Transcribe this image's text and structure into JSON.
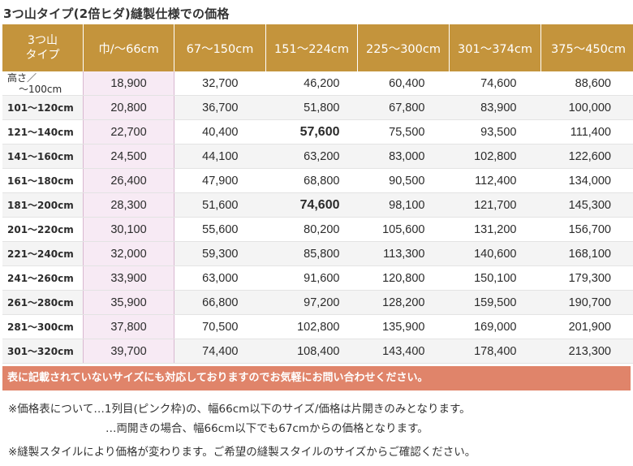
{
  "title": "3つ山タイプ(2倍ヒダ)縫製仕様での価格",
  "header": {
    "corner_line1": "3つ山",
    "corner_line2": "タイプ",
    "columns": [
      "巾/〜66cm",
      "67〜150cm",
      "151〜224cm",
      "225〜300cm",
      "301〜374cm",
      "375〜450cm"
    ]
  },
  "rows": [
    {
      "label_line1": "高さ／",
      "label_line2": "〜100cm",
      "values": [
        "18,900",
        "32,700",
        "46,200",
        "60,400",
        "74,600",
        "88,600"
      ]
    },
    {
      "label": "101〜120cm",
      "values": [
        "20,800",
        "36,700",
        "51,800",
        "67,800",
        "83,900",
        "100,000"
      ]
    },
    {
      "label": "121〜140cm",
      "values": [
        "22,700",
        "40,400",
        "57,600",
        "75,500",
        "93,500",
        "111,400"
      ]
    },
    {
      "label": "141〜160cm",
      "values": [
        "24,500",
        "44,100",
        "63,200",
        "83,000",
        "102,800",
        "122,600"
      ]
    },
    {
      "label": "161〜180cm",
      "values": [
        "26,400",
        "47,900",
        "68,800",
        "90,500",
        "112,400",
        "134,000"
      ]
    },
    {
      "label": "181〜200cm",
      "values": [
        "28,300",
        "51,600",
        "74,600",
        "98,100",
        "121,700",
        "145,300"
      ]
    },
    {
      "label": "201〜220cm",
      "values": [
        "30,100",
        "55,600",
        "80,200",
        "105,600",
        "131,200",
        "156,700"
      ]
    },
    {
      "label": "221〜240cm",
      "values": [
        "32,000",
        "59,300",
        "85,800",
        "113,300",
        "140,600",
        "168,100"
      ]
    },
    {
      "label": "241〜260cm",
      "values": [
        "33,900",
        "63,000",
        "91,600",
        "120,800",
        "150,100",
        "179,300"
      ]
    },
    {
      "label": "261〜280cm",
      "values": [
        "35,900",
        "66,800",
        "97,200",
        "128,200",
        "159,500",
        "190,700"
      ]
    },
    {
      "label": "281〜300cm",
      "values": [
        "37,800",
        "70,500",
        "102,800",
        "135,900",
        "169,000",
        "201,900"
      ]
    },
    {
      "label": "301〜320cm",
      "values": [
        "39,700",
        "74,400",
        "108,400",
        "143,400",
        "178,400",
        "213,300"
      ]
    }
  ],
  "banner": "表に記載されていないサイズにも対応しておりますのでお気軽にお問い合わせください。",
  "notes": {
    "line1": "※価格表について…1列目(ピンク枠)の、幅66cm以下のサイズ/価格は片開きのみとなります。",
    "line2": "…両開きの場合、幅66cm以下でも67cmからの価格となります。",
    "line3": "※縫製スタイルにより価格が変わります。ご希望の縫製スタイルのサイズからご確認ください。"
  },
  "colors": {
    "header": "#c4943c",
    "pink_column": "#f7eaf4",
    "banner": "#e0846a",
    "alt_row": "#f4f4f4"
  }
}
